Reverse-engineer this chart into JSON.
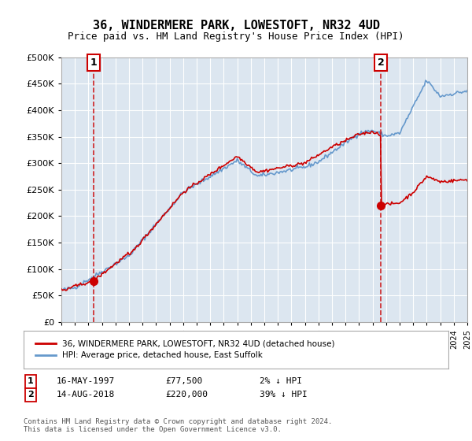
{
  "title": "36, WINDERMERE PARK, LOWESTOFT, NR32 4UD",
  "subtitle": "Price paid vs. HM Land Registry's House Price Index (HPI)",
  "background_color": "#dce6f0",
  "plot_bg_color": "#dce6f0",
  "hpi_color": "#6699cc",
  "price_color": "#cc0000",
  "vline_color": "#cc0000",
  "sale1_year": 1997.37,
  "sale1_price": 77500,
  "sale2_year": 2018.62,
  "sale2_price": 220000,
  "ylim": [
    0,
    500000
  ],
  "xlim_left": 1995,
  "xlim_right": 2025,
  "ytick_interval": 50000,
  "legend_red_label": "36, WINDERMERE PARK, LOWESTOFT, NR32 4UD (detached house)",
  "legend_blue_label": "HPI: Average price, detached house, East Suffolk",
  "note1_label": "1",
  "note1_date": "16-MAY-1997",
  "note1_price": "£77,500",
  "note1_hpi": "2% ↓ HPI",
  "note2_label": "2",
  "note2_date": "14-AUG-2018",
  "note2_price": "£220,000",
  "note2_hpi": "39% ↓ HPI",
  "footer": "Contains HM Land Registry data © Crown copyright and database right 2024.\nThis data is licensed under the Open Government Licence v3.0."
}
